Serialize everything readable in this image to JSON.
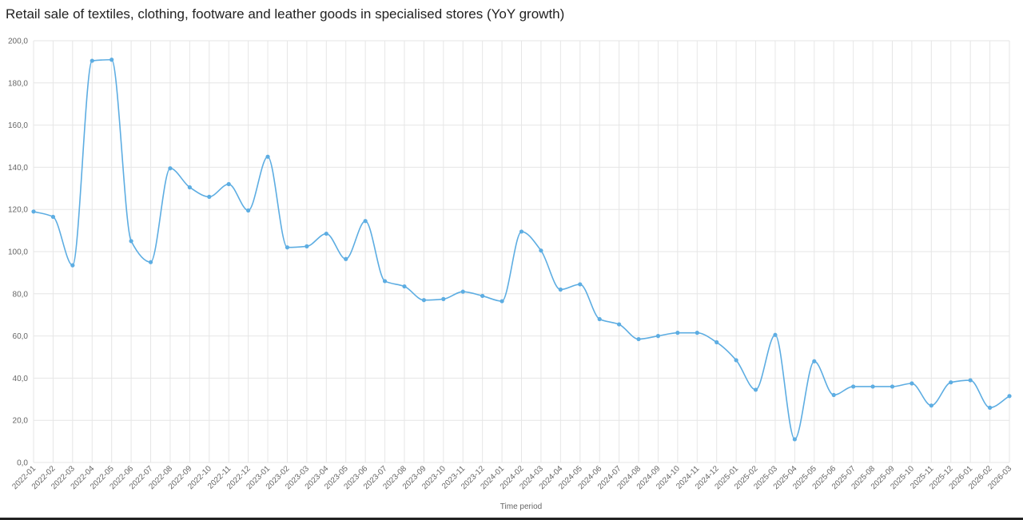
{
  "chart_data": {
    "type": "line",
    "title": "Retail sale of textiles, clothing, footware and leather goods in specialised stores (YoY growth)",
    "xlabel": "Time period",
    "ylabel": "",
    "ylim": [
      0,
      200
    ],
    "yticks": [
      "0,0",
      "20,0",
      "40,0",
      "60,0",
      "80,0",
      "100,0",
      "120,0",
      "140,0",
      "160,0",
      "180,0",
      "200,0"
    ],
    "grid": true,
    "line_color": "#5dade2",
    "categories": [
      "2022-01",
      "2022-02",
      "2022-03",
      "2022-04",
      "2022-05",
      "2022-06",
      "2022-07",
      "2022-08",
      "2022-09",
      "2022-10",
      "2022-11",
      "2022-12",
      "2023-01",
      "2023-02",
      "2023-03",
      "2023-04",
      "2023-05",
      "2023-06",
      "2023-07",
      "2023-08",
      "2023-09",
      "2023-10",
      "2023-11",
      "2023-12",
      "2024-01",
      "2024-02",
      "2024-03",
      "2024-04",
      "2024-05",
      "2024-06",
      "2024-07",
      "2024-08",
      "2024-09",
      "2024-10",
      "2024-11",
      "2024-12",
      "2025-01",
      "2025-02",
      "2025-03",
      "2025-04",
      "2025-05",
      "2025-06",
      "2025-07",
      "2025-08",
      "2025-09",
      "2025-10",
      "2025-11",
      "2025-12",
      "2026-01",
      "2026-02",
      "2026-03"
    ],
    "series": [
      {
        "values": [
          119,
          116.5,
          93.5,
          190.5,
          191,
          105,
          95,
          139.5,
          130.5,
          126,
          132,
          119.5,
          145,
          102,
          102.5,
          108.5,
          96.5,
          114.5,
          86,
          83.5,
          77,
          77.5,
          81,
          79,
          76.5,
          109.5,
          100.5,
          82,
          84.5,
          68,
          65.5,
          58.5,
          60,
          61.5,
          61.5,
          57,
          48.5,
          34.5,
          60.5,
          11,
          48,
          32,
          36,
          36,
          36,
          37.5,
          27,
          38,
          39,
          26,
          31.5
        ]
      }
    ]
  }
}
